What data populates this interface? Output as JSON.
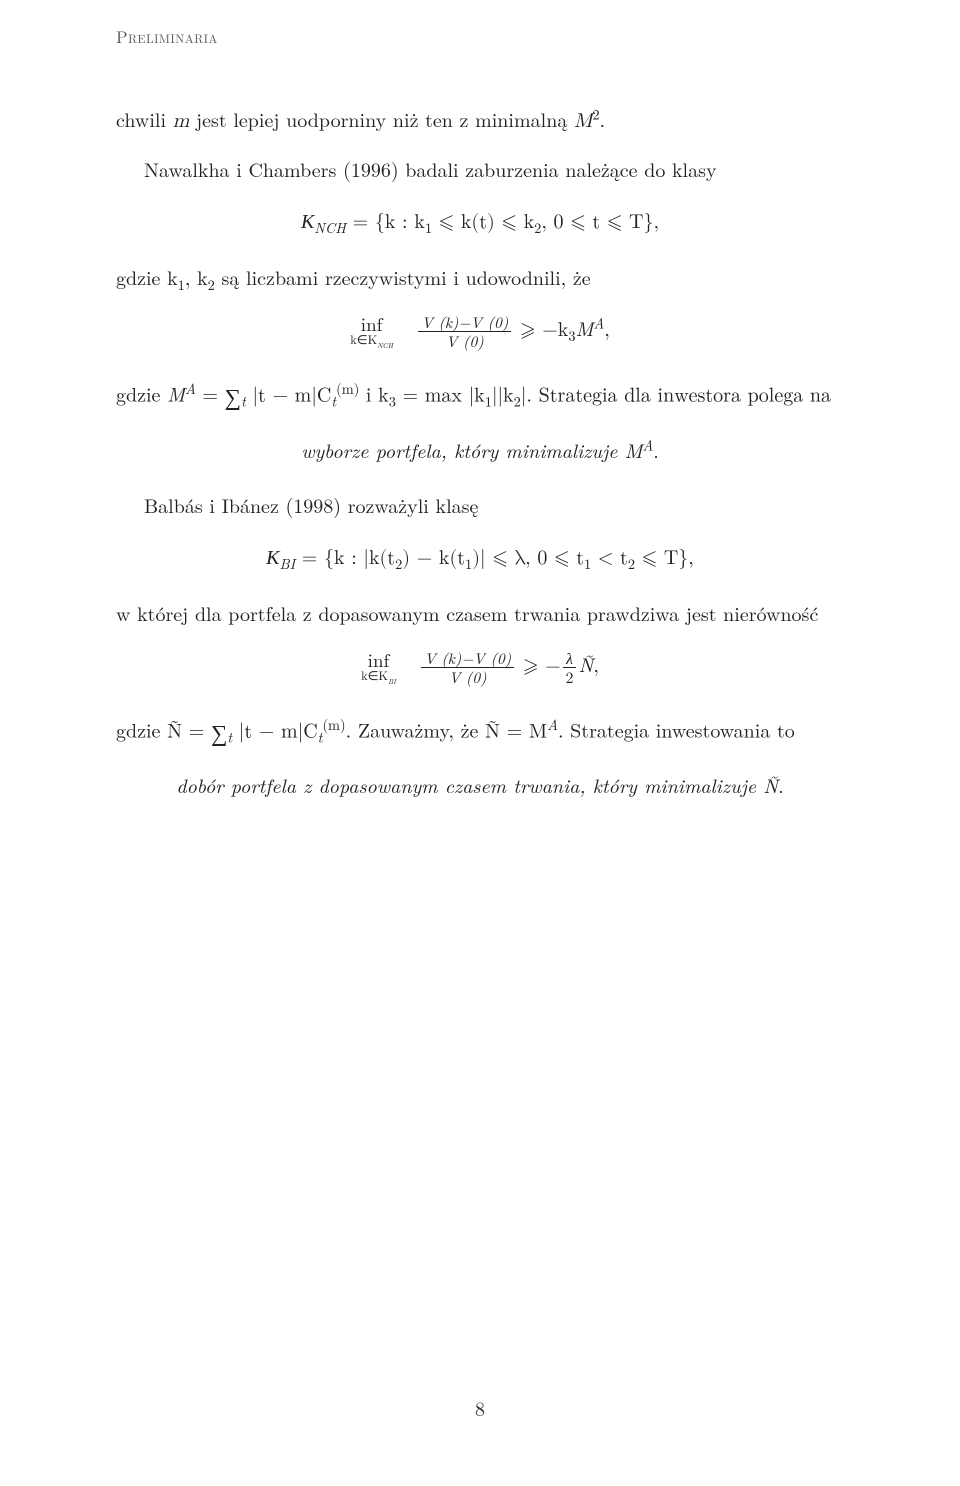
{
  "running_head": "Preliminaria",
  "page_number": "8",
  "p1_prefix": "chwili ",
  "p1_m": "m",
  "p1_mid": " jest lepiej uodporniny niż ten z minimalną ",
  "p1_M2": "M",
  "p1_exp2": "2",
  "p1_end": ".",
  "p2_a": "Nawalkha i Chambers (1996) badali zaburzenia należące do klasy",
  "d1_K": "K",
  "d1_NCH": "NCH",
  "d1_eq": " = {k : k",
  "d1_1": "1",
  "d1_le1": " ⩽ k(t) ⩽ k",
  "d1_2a": "2",
  "d1_mid": ",  0 ⩽ t ⩽ T},",
  "p3_a": "gdzie k",
  "p3_1": "1",
  "p3_b": ", k",
  "p3_2": "2",
  "p3_c": " są liczbami rzeczywistymi i udowodnili, że",
  "d2_inf": "inf",
  "d2_sub": "k∈K",
  "d2_subNCH": "NCH",
  "d2_num": "V (k)−V (0)",
  "d2_den": "V (0)",
  "d2_ge": " ⩾ −k",
  "d2_3": "3",
  "d2_MA": "M",
  "d2_A": "A",
  "d2_end": ",",
  "p4_a": "gdzie ",
  "p4_MA": "M",
  "p4_A": "A",
  "p4_eq": " = ",
  "p4_sum": "∑",
  "p4_t": "t",
  "p4_body": " |t − m|C",
  "p4_Csub": "t",
  "p4_Csup": "(m)",
  "p4_b": " i k",
  "p4_3": "3",
  "p4_c": " = max |k",
  "p4_1": "1",
  "p4_d": "||k",
  "p4_2": "2",
  "p4_e": "|. Strategia dla inwestora polega na",
  "em1_a": "wyborze portfela, który minimalizuje ",
  "em1_M": "M",
  "em1_A": "A",
  "em1_dot": ".",
  "p5": "Balbás i Ibánez (1998) rozważyli klasę",
  "d3_K": "K",
  "d3_BI": "BI",
  "d3_eq": " = {k : |k(t",
  "d3_2": "2",
  "d3_a": ") − k(t",
  "d3_1": "1",
  "d3_b": ")| ⩽ λ,  0 ⩽ t",
  "d3_1b": "1",
  "d3_lt": " < t",
  "d3_2b": "2",
  "d3_end": " ⩽ T},",
  "p6": "w której dla portfela z dopasowanym czasem trwania prawdziwa jest nierówność",
  "d4_inf": "inf",
  "d4_sub": "k∈K",
  "d4_subBI": "BI",
  "d4_num": "V (k)−V (0)",
  "d4_den": "V (0)",
  "d4_ge": " ⩾ −",
  "d4_lnum": "λ",
  "d4_lden": "2",
  "d4_N": "Ñ",
  "d4_end": ",",
  "p7_a": "gdzie Ñ = ",
  "p7_sum": "∑",
  "p7_t": "t",
  "p7_body": " |t − m|C",
  "p7_Csub": "t",
  "p7_Csup": "(m)",
  "p7_b": ". Zauważmy, że Ñ = M",
  "p7_A": "A",
  "p7_c": ". Strategia inwestowania to",
  "em2_a": "dobór portfela z dopasowanym czasem trwania, który minimalizuje Ñ",
  "em2_dot": "."
}
